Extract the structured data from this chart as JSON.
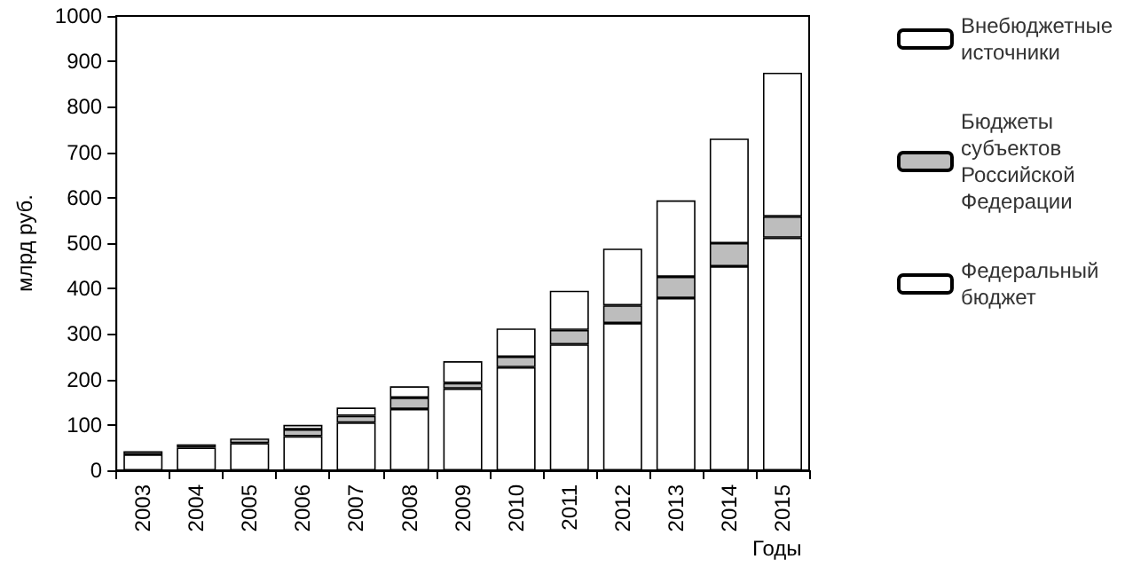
{
  "chart_data": {
    "type": "bar",
    "stacked": true,
    "xlabel": "Годы",
    "ylabel": "млрд руб.",
    "categories": [
      "2003",
      "2004",
      "2005",
      "2006",
      "2007",
      "2008",
      "2009",
      "2010",
      "2011",
      "2012",
      "2013",
      "2014",
      "2015"
    ],
    "series": [
      {
        "name": "Федеральный бюджет",
        "color": "#ffffff",
        "values": [
          35,
          50,
          60,
          75,
          105,
          135,
          180,
          227,
          277,
          324,
          379,
          449,
          512
        ]
      },
      {
        "name": "Бюджеты субъектов Российской Федерации",
        "color": "#bdbdbd",
        "values": [
          7,
          7,
          10,
          15,
          15,
          25,
          12,
          23,
          32,
          39,
          47,
          51,
          47
        ]
      },
      {
        "name": "Внебюджетные источники",
        "color": "#ffffff",
        "values": [
          null,
          null,
          null,
          10,
          18,
          25,
          48,
          62,
          86,
          125,
          168,
          230,
          316
        ]
      }
    ],
    "ylim": [
      0,
      1000
    ],
    "yticks": [
      0,
      100,
      200,
      300,
      400,
      500,
      600,
      700,
      800,
      900,
      1000
    ],
    "grid": false,
    "legend": "right"
  }
}
